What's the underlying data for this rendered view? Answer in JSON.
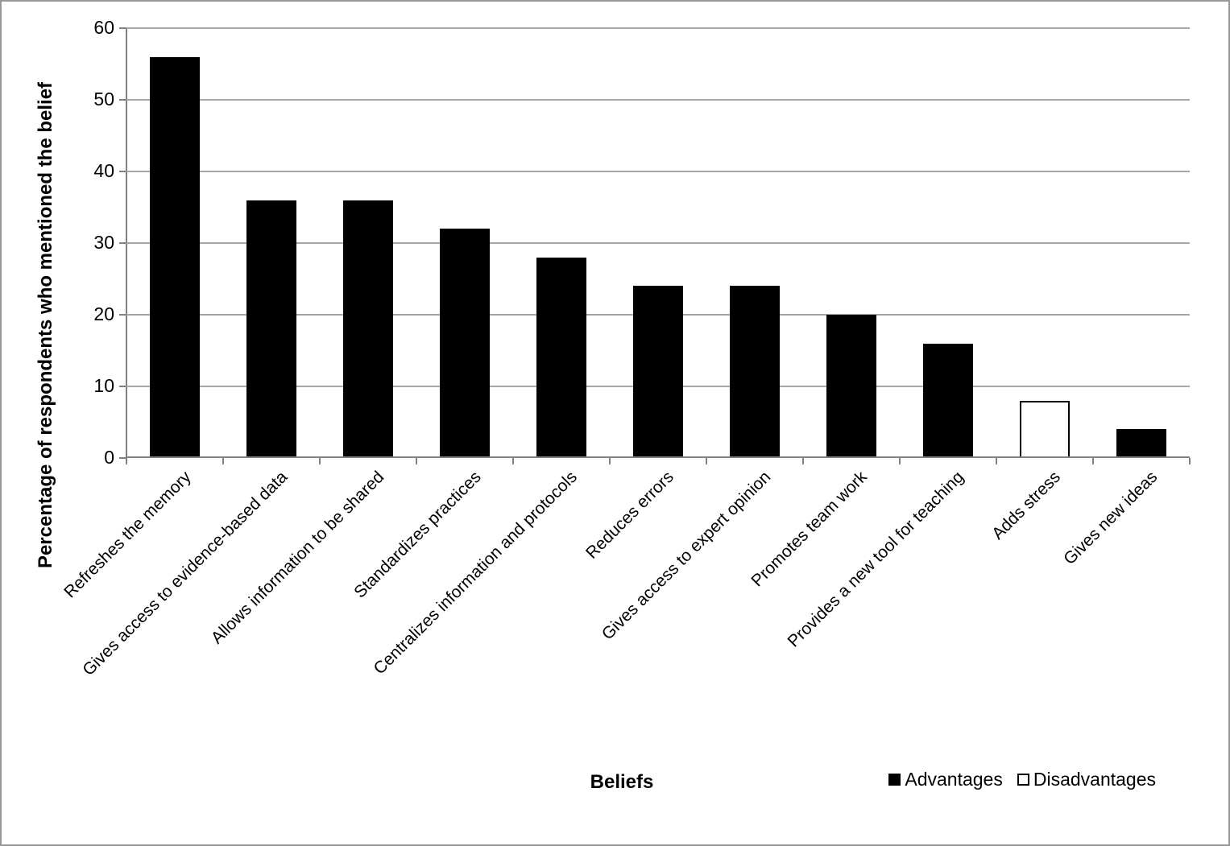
{
  "chart_data": {
    "type": "bar",
    "title": "",
    "xlabel": "Beliefs",
    "ylabel": "Percentage of respondents who mentioned the belief",
    "ylim": [
      0,
      60
    ],
    "yticks": [
      0,
      10,
      20,
      30,
      40,
      50,
      60
    ],
    "grid": true,
    "legend_position": "bottom-right",
    "categories": [
      "Refreshes the memory",
      "Gives access to evidence-based data",
      "Allows information to be shared",
      "Standardizes practices",
      "Centralizes information and protocols",
      "Reduces errors",
      "Gives access to expert opinion",
      "Promotes team work",
      "Provides a new tool for teaching",
      "Adds stress",
      "Gives new ideas"
    ],
    "values": [
      56,
      36,
      36,
      32,
      28,
      24,
      24,
      20,
      16,
      8,
      4
    ],
    "point_series_index": [
      0,
      0,
      0,
      0,
      0,
      0,
      0,
      0,
      0,
      1,
      0
    ],
    "series": [
      {
        "name": "Advantages",
        "fill": "#000000",
        "border": "#000000"
      },
      {
        "name": "Disadvantages",
        "fill": "#ffffff",
        "border": "#000000"
      }
    ],
    "colors": {
      "gridline": "#a6a6a6",
      "axis": "#808080",
      "text": "#000000",
      "background": "#ffffff",
      "canvas_border": "#999999"
    }
  }
}
